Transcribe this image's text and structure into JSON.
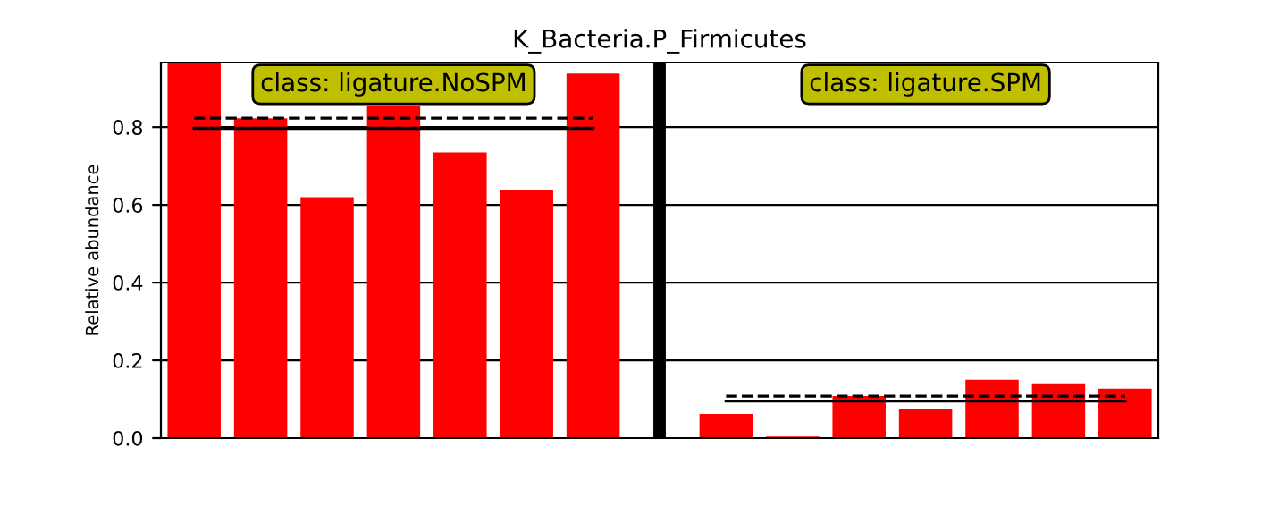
{
  "chart_data": {
    "type": "bar",
    "title": "K_Bacteria.P_Firmicutes",
    "ylabel": "Relative abundance",
    "categories": [
      null,
      null,
      null,
      null,
      null,
      null,
      null,
      null,
      null,
      null,
      null,
      null,
      null,
      null,
      null
    ],
    "series": [
      {
        "color": "#ff0000",
        "values": [
          0.966,
          0.823,
          0.62,
          0.855,
          0.735,
          0.639,
          0.938,
          null,
          0.062,
          0.004,
          0.108,
          0.076,
          0.15,
          0.141,
          0.127
        ]
      },
      {
        "type": "line",
        "color": "#000000",
        "line_style": "solid",
        "values": [
          0.797,
          0.797,
          0.797,
          0.797,
          0.797,
          0.797,
          0.797,
          null,
          null,
          null,
          null,
          null,
          null,
          null,
          null
        ]
      },
      {
        "type": "line",
        "color": "#000000",
        "line_style": "dashed",
        "values": [
          0.823,
          0.823,
          0.823,
          0.823,
          0.823,
          0.823,
          0.823,
          null,
          null,
          null,
          null,
          null,
          null,
          null,
          null
        ]
      },
      {
        "type": "line",
        "color": "#000000",
        "line_style": "solid",
        "values": [
          null,
          null,
          null,
          null,
          null,
          null,
          null,
          null,
          0.095,
          0.095,
          0.095,
          0.095,
          0.095,
          0.095,
          0.095
        ]
      },
      {
        "type": "line",
        "color": "#000000",
        "line_style": "dashed",
        "values": [
          null,
          null,
          null,
          null,
          null,
          null,
          null,
          null,
          0.108,
          0.108,
          0.108,
          0.108,
          0.108,
          0.108,
          0.108
        ]
      }
    ],
    "annotations": [
      "class: ligature.NoSPM",
      "class: ligature.SPM"
    ],
    "ylim": [
      0,
      0.966
    ],
    "yticks": [
      {
        "value": 0,
        "label": "0.0"
      },
      0.2,
      0.4,
      0.6,
      0.8
    ],
    "grid": "y"
  }
}
